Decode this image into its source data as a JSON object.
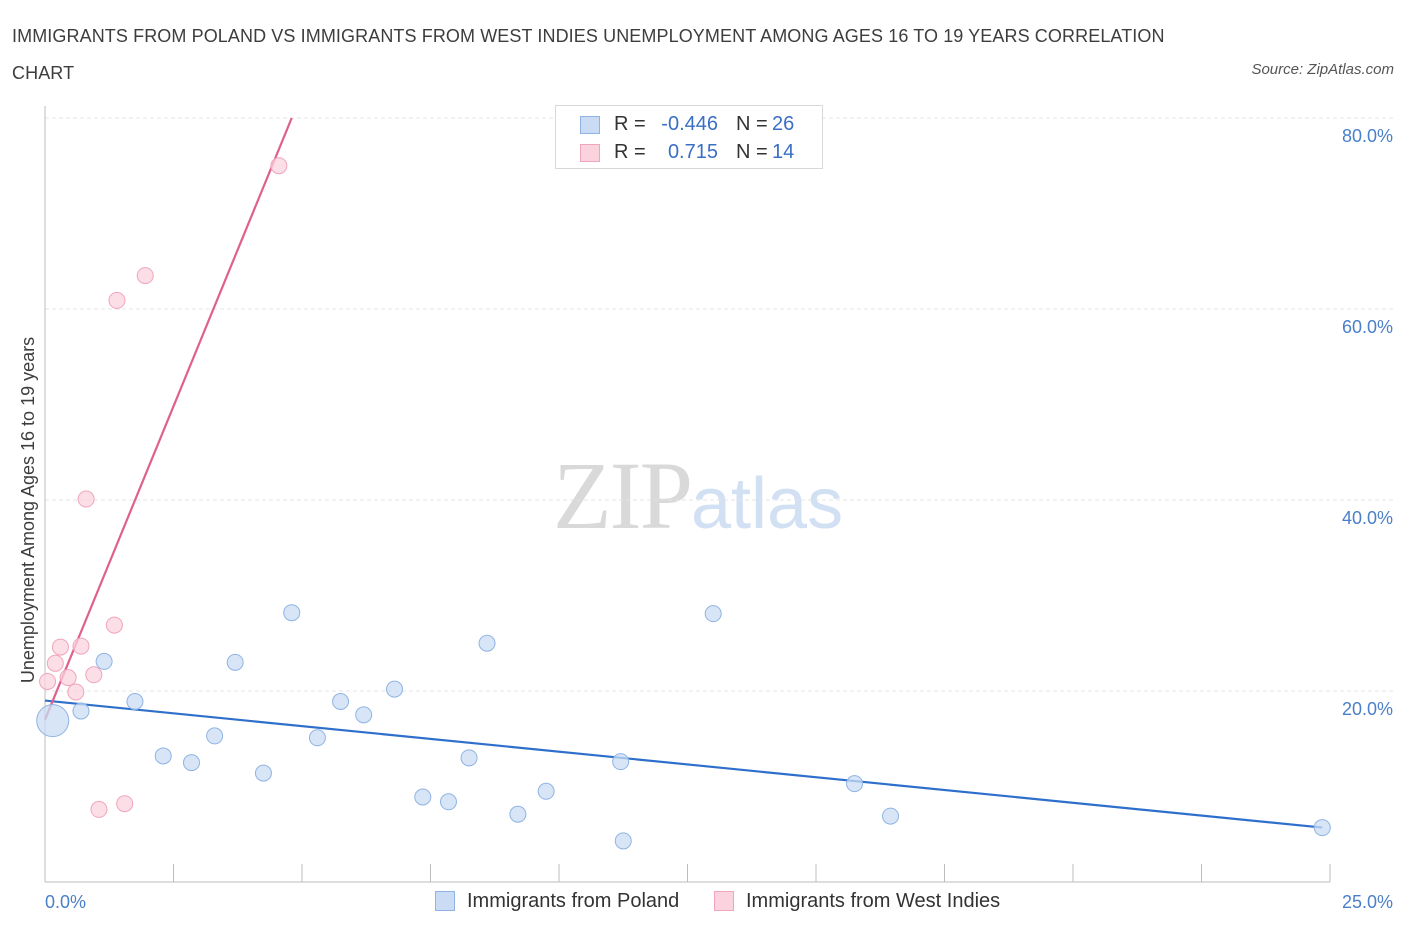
{
  "title": "IMMIGRANTS FROM POLAND VS IMMIGRANTS FROM WEST INDIES UNEMPLOYMENT AMONG AGES 16 TO 19 YEARS CORRELATION CHART",
  "source": "Source: ZipAtlas.com",
  "watermark": {
    "zip": "ZIP",
    "atlas": "atlas"
  },
  "legend": {
    "poland": {
      "r_label": "R =",
      "r_value": "-0.446",
      "n_label": "N =",
      "n_value": "26"
    },
    "westindies": {
      "r_label": "R =",
      "r_value": "0.715",
      "n_label": "N =",
      "n_value": "14"
    }
  },
  "colors": {
    "poland_fill": "#c9dcf4",
    "poland_stroke": "#8fb4e3",
    "poland_line": "#2f6fcc",
    "westindies_fill": "#fbd3df",
    "westindies_stroke": "#f0a5bd",
    "westindies_line": "#e0608d",
    "axis_label": "#4a7fc9",
    "grid": "#e4e4e4"
  },
  "chart_data": {
    "type": "scatter",
    "title": "IMMIGRANTS FROM POLAND VS IMMIGRANTS FROM WEST INDIES UNEMPLOYMENT AMONG AGES 16 TO 19 YEARS CORRELATION CHART",
    "xlabel": "",
    "ylabel": "Unemployment Among Ages 16 to 19 years",
    "xlim": [
      0,
      25
    ],
    "ylim": [
      0,
      80
    ],
    "x_tick_labels": [
      "0.0%",
      "25.0%"
    ],
    "y_ticks": [
      20,
      40,
      60,
      80
    ],
    "y_tick_labels": [
      "20.0%",
      "40.0%",
      "60.0%",
      "80.0%"
    ],
    "grid": true,
    "legend_position": "top-center",
    "series": [
      {
        "name": "Immigrants from Poland",
        "points": [
          {
            "x": 0.15,
            "y": 16.9,
            "big": true
          },
          {
            "x": 0.7,
            "y": 17.9
          },
          {
            "x": 1.15,
            "y": 23.1
          },
          {
            "x": 1.75,
            "y": 18.9
          },
          {
            "x": 2.3,
            "y": 13.2
          },
          {
            "x": 2.85,
            "y": 12.5
          },
          {
            "x": 3.3,
            "y": 15.3
          },
          {
            "x": 3.7,
            "y": 23.0
          },
          {
            "x": 4.25,
            "y": 11.4
          },
          {
            "x": 4.8,
            "y": 28.2
          },
          {
            "x": 5.3,
            "y": 15.1
          },
          {
            "x": 5.75,
            "y": 18.9
          },
          {
            "x": 6.2,
            "y": 17.5
          },
          {
            "x": 6.8,
            "y": 20.2
          },
          {
            "x": 7.35,
            "y": 8.9
          },
          {
            "x": 7.85,
            "y": 8.4
          },
          {
            "x": 8.25,
            "y": 13.0
          },
          {
            "x": 8.6,
            "y": 25.0
          },
          {
            "x": 9.2,
            "y": 7.1
          },
          {
            "x": 9.75,
            "y": 9.5
          },
          {
            "x": 11.2,
            "y": 12.6
          },
          {
            "x": 11.25,
            "y": 4.3
          },
          {
            "x": 13.0,
            "y": 28.1
          },
          {
            "x": 15.75,
            "y": 10.3
          },
          {
            "x": 16.45,
            "y": 6.9
          },
          {
            "x": 24.85,
            "y": 5.7
          }
        ],
        "trend": {
          "x": [
            0,
            24.85
          ],
          "y": [
            19.0,
            5.7
          ]
        }
      },
      {
        "name": "Immigrants from West Indies",
        "points": [
          {
            "x": 0.05,
            "y": 21.0
          },
          {
            "x": 0.2,
            "y": 22.9
          },
          {
            "x": 0.3,
            "y": 24.6
          },
          {
            "x": 0.45,
            "y": 21.4
          },
          {
            "x": 0.6,
            "y": 19.9
          },
          {
            "x": 0.7,
            "y": 24.7
          },
          {
            "x": 0.8,
            "y": 40.1
          },
          {
            "x": 0.95,
            "y": 21.7
          },
          {
            "x": 1.05,
            "y": 7.6
          },
          {
            "x": 1.35,
            "y": 26.9
          },
          {
            "x": 1.4,
            "y": 60.9
          },
          {
            "x": 1.55,
            "y": 8.2
          },
          {
            "x": 1.95,
            "y": 63.5
          },
          {
            "x": 4.55,
            "y": 75.0
          }
        ],
        "trend": {
          "x": [
            0,
            4.8
          ],
          "y": [
            17.0,
            80.0
          ]
        }
      }
    ]
  }
}
